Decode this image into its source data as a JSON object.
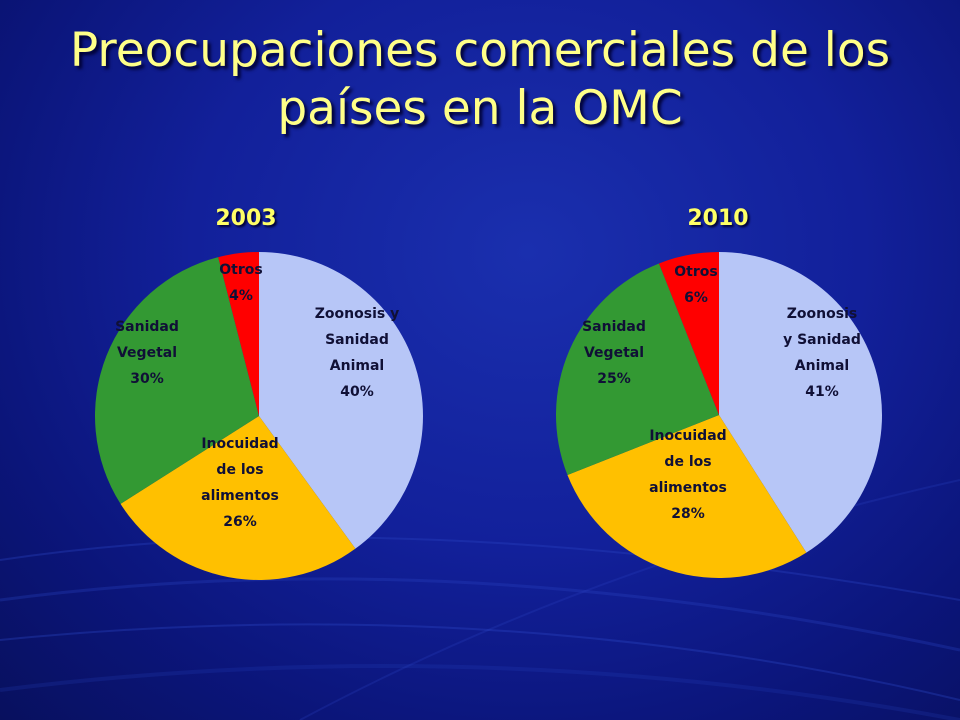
{
  "title_line1": "Preocupaciones comerciales de los",
  "title_line2": "países en la OMC",
  "chart_data": [
    {
      "type": "pie",
      "title": "2003",
      "slices": [
        {
          "label_lines": [
            "Zoonosis y",
            "Sanidad",
            "Animal",
            "40%"
          ],
          "value": 40,
          "color": "#b7c6f7"
        },
        {
          "label_lines": [
            "Inocuidad",
            "de los",
            "alimentos",
            "26%"
          ],
          "value": 26,
          "color": "#ffc000"
        },
        {
          "label_lines": [
            "Sanidad",
            "Vegetal",
            "30%"
          ],
          "value": 30,
          "color": "#339933"
        },
        {
          "label_lines": [
            "Otros",
            "4%"
          ],
          "value": 4,
          "color": "#ff0000"
        }
      ]
    },
    {
      "type": "pie",
      "title": "2010",
      "slices": [
        {
          "label_lines": [
            "Zoonosis",
            "y Sanidad",
            "Animal",
            "41%"
          ],
          "value": 41,
          "color": "#b7c6f7"
        },
        {
          "label_lines": [
            "Inocuidad",
            "de los",
            "alimentos",
            "28%"
          ],
          "value": 28,
          "color": "#ffc000"
        },
        {
          "label_lines": [
            "Sanidad",
            "Vegetal",
            "25%"
          ],
          "value": 25,
          "color": "#339933"
        },
        {
          "label_lines": [
            "Otros",
            "6%"
          ],
          "value": 6,
          "color": "#ff0000"
        }
      ]
    }
  ]
}
